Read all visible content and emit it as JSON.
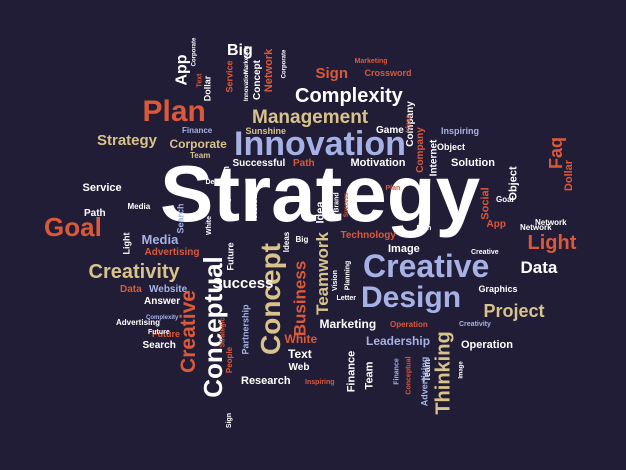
{
  "palette": {
    "background": "#221d37",
    "white": "#ffffff",
    "orange": "#d9593a",
    "tan": "#d8c38a",
    "blue": "#a6b2e6",
    "small": "#c7c3d3"
  },
  "words": [
    {
      "text": "Strategy",
      "color": "white"
    },
    {
      "text": "Innovation",
      "color": "blue"
    },
    {
      "text": "Creative",
      "color": "blue"
    },
    {
      "text": "Design",
      "color": "blue"
    },
    {
      "text": "Complexity",
      "color": "white"
    },
    {
      "text": "Management",
      "color": "tan"
    },
    {
      "text": "Plan",
      "color": "orange"
    },
    {
      "text": "Goal",
      "color": "orange"
    },
    {
      "text": "Creativity",
      "color": "tan"
    },
    {
      "text": "Light",
      "color": "orange"
    },
    {
      "text": "Data",
      "color": "white"
    },
    {
      "text": "Project",
      "color": "tan"
    },
    {
      "text": "Conceptual",
      "color": "white"
    },
    {
      "text": "Concept",
      "color": "tan"
    },
    {
      "text": "Creative",
      "color": "orange"
    },
    {
      "text": "Thinking",
      "color": "tan"
    },
    {
      "text": "Business",
      "color": "orange"
    },
    {
      "text": "Teamwork",
      "color": "tan"
    },
    {
      "text": "Success",
      "color": "white"
    },
    {
      "text": "Strategy",
      "color": "tan"
    },
    {
      "text": "Big",
      "color": "white"
    },
    {
      "text": "App",
      "color": "white"
    },
    {
      "text": "Sign",
      "color": "orange"
    },
    {
      "text": "Network",
      "color": "orange"
    },
    {
      "text": "Corporate",
      "color": "tan"
    },
    {
      "text": "Faq",
      "color": "orange"
    },
    {
      "text": "Dollar",
      "color": "orange"
    },
    {
      "text": "Object",
      "color": "white"
    },
    {
      "text": "Social",
      "color": "orange"
    },
    {
      "text": "Solution",
      "color": "white"
    },
    {
      "text": "Motivation",
      "color": "white"
    },
    {
      "text": "Service",
      "color": "white"
    },
    {
      "text": "Media",
      "color": "blue"
    },
    {
      "text": "Path",
      "color": "white"
    },
    {
      "text": "Advertising",
      "color": "orange"
    },
    {
      "text": "Website",
      "color": "blue"
    },
    {
      "text": "Answer",
      "color": "white"
    },
    {
      "text": "Data",
      "color": "orange"
    },
    {
      "text": "Future",
      "color": "orange"
    },
    {
      "text": "Marketing",
      "color": "white"
    },
    {
      "text": "Leadership",
      "color": "blue"
    },
    {
      "text": "Operation",
      "color": "white"
    },
    {
      "text": "Research",
      "color": "white"
    },
    {
      "text": "Text",
      "color": "white"
    },
    {
      "text": "Web",
      "color": "white"
    },
    {
      "text": "White",
      "color": "orange"
    },
    {
      "text": "Image",
      "color": "white"
    },
    {
      "text": "Technology",
      "color": "orange"
    },
    {
      "text": "Graphics",
      "color": "white"
    },
    {
      "text": "Network",
      "color": "white"
    },
    {
      "text": "Goal",
      "color": "white"
    },
    {
      "text": "App",
      "color": "orange"
    },
    {
      "text": "Finance",
      "color": "blue"
    },
    {
      "text": "Team",
      "color": "tan"
    },
    {
      "text": "Advertising",
      "color": "white"
    },
    {
      "text": "Search",
      "color": "white"
    },
    {
      "text": "Internet",
      "color": "white"
    },
    {
      "text": "Company",
      "color": "orange"
    },
    {
      "text": "Game",
      "color": "white"
    },
    {
      "text": "Inspiring",
      "color": "blue"
    },
    {
      "text": "Sunshine",
      "color": "tan"
    },
    {
      "text": "Successful",
      "color": "white"
    },
    {
      "text": "Path",
      "color": "orange"
    },
    {
      "text": "Marketing",
      "color": "orange"
    },
    {
      "text": "Crossword",
      "color": "orange"
    },
    {
      "text": "Finance",
      "color": "white"
    },
    {
      "text": "Team",
      "color": "white"
    },
    {
      "text": "Corporate",
      "color": "white"
    },
    {
      "text": "Concept",
      "color": "white"
    },
    {
      "text": "Service",
      "color": "orange"
    },
    {
      "text": "Innovation",
      "color": "white"
    },
    {
      "text": "Text",
      "color": "orange"
    },
    {
      "text": "Dollar",
      "color": "white"
    },
    {
      "text": "Company",
      "color": "white"
    },
    {
      "text": "Ideas",
      "color": "orange"
    },
    {
      "text": "Object",
      "color": "white"
    },
    {
      "text": "Design",
      "color": "white"
    },
    {
      "text": "Question",
      "color": "white"
    },
    {
      "text": "White",
      "color": "white"
    },
    {
      "text": "Idea",
      "color": "white"
    },
    {
      "text": "Vision",
      "color": "white"
    },
    {
      "text": "Brand",
      "color": "white"
    },
    {
      "text": "Success",
      "color": "orange"
    },
    {
      "text": "Plan",
      "color": "orange"
    },
    {
      "text": "Plan",
      "color": "white"
    },
    {
      "text": "Creative",
      "color": "white"
    },
    {
      "text": "Network",
      "color": "white"
    },
    {
      "text": "Media",
      "color": "white"
    },
    {
      "text": "Light",
      "color": "white"
    },
    {
      "text": "Search",
      "color": "blue"
    },
    {
      "text": "Future",
      "color": "white"
    },
    {
      "text": "Ideas",
      "color": "white"
    },
    {
      "text": "Big",
      "color": "white"
    },
    {
      "text": "Planning",
      "color": "white"
    },
    {
      "text": "Vision",
      "color": "white"
    },
    {
      "text": "Letter",
      "color": "white"
    },
    {
      "text": "Operation",
      "color": "orange"
    },
    {
      "text": "Creativity",
      "color": "blue"
    },
    {
      "text": "Complexity",
      "color": "blue"
    },
    {
      "text": "Future",
      "color": "white"
    },
    {
      "text": "Strategic",
      "color": "orange"
    },
    {
      "text": "Partnership",
      "color": "blue"
    },
    {
      "text": "People",
      "color": "orange"
    },
    {
      "text": "Sign",
      "color": "white"
    },
    {
      "text": "Inspiring",
      "color": "orange"
    },
    {
      "text": "Finance",
      "color": "blue"
    },
    {
      "text": "Team",
      "color": "white"
    },
    {
      "text": "Advertising",
      "color": "blue"
    },
    {
      "text": "Conceptual",
      "color": "orange"
    },
    {
      "text": "Image",
      "color": "white"
    },
    {
      "text": "Marketing",
      "color": "white"
    },
    {
      "text": "Corporate",
      "color": "white"
    }
  ]
}
